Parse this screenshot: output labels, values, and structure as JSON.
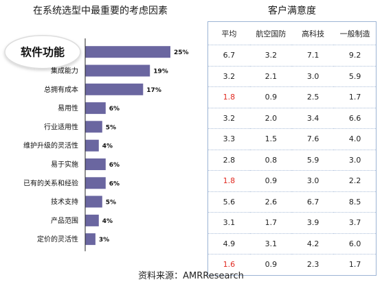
{
  "left_title": "在系统选型中最重要的考虑因素",
  "right_title": "客户满意度",
  "source": "资料来源：AMRResearch",
  "colors": {
    "bar": "#6a66a0",
    "highlight_text": "#e0281f",
    "table_border": "#9bb3d4"
  },
  "chart_data": {
    "type": "bar",
    "orientation": "horizontal",
    "title": "在系统选型中最重要的考虑因素",
    "categories": [
      "软件功能",
      "集成能力",
      "总拥有成本",
      "易用性",
      "行业适用性",
      "维护升级的灵活性",
      "易于实施",
      "已有的关系和经验",
      "技术支持",
      "产品范围",
      "定价的灵活性"
    ],
    "values": [
      25,
      19,
      17,
      6,
      5,
      4,
      6,
      6,
      5,
      4,
      3
    ],
    "value_labels": [
      "25%",
      "19%",
      "17%",
      "6%",
      "5%",
      "4%",
      "6%",
      "6%",
      "5%",
      "4%",
      "3%"
    ],
    "highlighted_category": "软件功能",
    "xlim": [
      0,
      25
    ],
    "grid": false
  },
  "table": {
    "headers": [
      "平均",
      "航空国防",
      "高科技",
      "一般制造"
    ],
    "rows": [
      [
        "6.7",
        "3.2",
        "7.1",
        "9.2"
      ],
      [
        "3.2",
        "2.1",
        "3.0",
        "5.9"
      ],
      [
        "1.8",
        "0.9",
        "2.5",
        "1.7"
      ],
      [
        "3.2",
        "2.0",
        "3.4",
        "6.6"
      ],
      [
        "3.3",
        "1.5",
        "7.6",
        "4.0"
      ],
      [
        "2.8",
        "0.8",
        "5.9",
        "3.0"
      ],
      [
        "1.8",
        "0.9",
        "3.0",
        "2.2"
      ],
      [
        "5.6",
        "2.6",
        "6.7",
        "8.5"
      ],
      [
        "3.1",
        "1.7",
        "3.9",
        "3.7"
      ],
      [
        "4.9",
        "3.1",
        "4.2",
        "6.0"
      ],
      [
        "1.6",
        "0.9",
        "2.3",
        "1.7"
      ]
    ],
    "red_cells": [
      [
        2,
        0
      ],
      [
        6,
        0
      ],
      [
        10,
        0
      ]
    ]
  }
}
